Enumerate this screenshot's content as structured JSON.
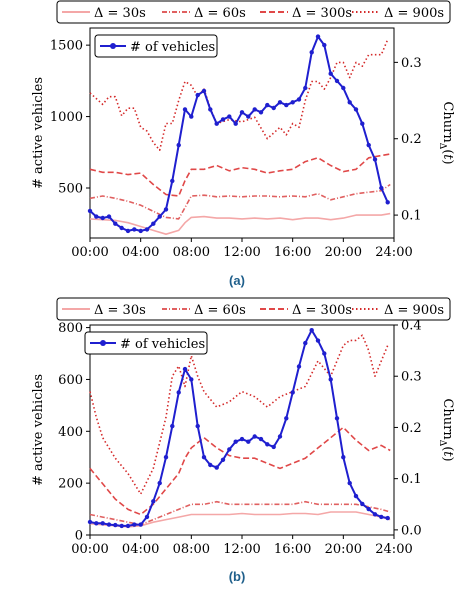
{
  "chart_data": [
    {
      "type": "line",
      "panel_label": "(a)",
      "xlabel": "",
      "ylabel_left": "# active vehicles",
      "ylabel_right": "Churn",
      "ylabel_right_sub": "Δ",
      "x_ticks": [
        "00:00",
        "04:00",
        "08:00",
        "12:00",
        "16:00",
        "20:00",
        "24:00"
      ],
      "y_left_ticks": [
        500,
        1000,
        1500
      ],
      "y_right_ticks": [
        0.1,
        0.2,
        0.3
      ],
      "xlim": [
        0,
        24
      ],
      "ylim_left": [
        150,
        1620
      ],
      "ylim_right": [
        0.07,
        0.345
      ],
      "legend_top": [
        "Δ = 30s",
        "Δ = 60s",
        "Δ = 300s",
        "Δ = 900s"
      ],
      "legend_inner": "# of vehicles",
      "series": [
        {
          "name": "# of vehicles",
          "axis": "left",
          "color": "#1f1fcf",
          "style": "solid",
          "marker": true,
          "x": [
            0,
            0.5,
            1,
            1.5,
            2,
            2.5,
            3,
            3.5,
            4,
            4.5,
            5,
            5.5,
            6,
            6.5,
            7,
            7.5,
            8,
            8.5,
            9,
            9.5,
            10,
            10.5,
            11,
            11.5,
            12,
            12.5,
            13,
            13.5,
            14,
            14.5,
            15,
            15.5,
            16,
            16.5,
            17,
            17.5,
            18,
            18.5,
            19,
            19.5,
            20,
            20.5,
            21,
            21.5,
            22,
            22.5,
            23,
            23.5
          ],
          "values": [
            340,
            300,
            290,
            300,
            250,
            220,
            200,
            210,
            200,
            210,
            250,
            300,
            350,
            550,
            800,
            1050,
            1000,
            1150,
            1180,
            1050,
            950,
            980,
            1000,
            950,
            1030,
            1000,
            1050,
            1030,
            1080,
            1060,
            1100,
            1080,
            1100,
            1120,
            1200,
            1450,
            1560,
            1500,
            1300,
            1250,
            1200,
            1100,
            1050,
            950,
            800,
            700,
            500,
            400
          ]
        },
        {
          "name": "Δ = 30s",
          "axis": "right",
          "color": "#f4a7a7",
          "style": "solid",
          "x": [
            0,
            1,
            2,
            3,
            4,
            5,
            6,
            7,
            7.5,
            8,
            9,
            10,
            11,
            12,
            13,
            14,
            15,
            16,
            17,
            18,
            19,
            20,
            21,
            22,
            23,
            23.7
          ],
          "values": [
            0.095,
            0.094,
            0.093,
            0.09,
            0.085,
            0.08,
            0.075,
            0.08,
            0.09,
            0.097,
            0.098,
            0.096,
            0.096,
            0.095,
            0.096,
            0.095,
            0.096,
            0.094,
            0.096,
            0.096,
            0.094,
            0.096,
            0.1,
            0.1,
            0.1,
            0.102
          ]
        },
        {
          "name": "Δ = 60s",
          "axis": "right",
          "color": "#e06060",
          "style": "dashdot",
          "x": [
            0,
            1,
            2,
            3,
            4,
            5,
            6,
            7,
            7.5,
            8,
            9,
            10,
            11,
            12,
            13,
            14,
            15,
            16,
            17,
            18,
            19,
            20,
            21,
            22,
            23,
            23.7
          ],
          "values": [
            0.122,
            0.125,
            0.122,
            0.118,
            0.113,
            0.105,
            0.097,
            0.095,
            0.11,
            0.125,
            0.126,
            0.124,
            0.125,
            0.124,
            0.125,
            0.125,
            0.124,
            0.125,
            0.124,
            0.128,
            0.12,
            0.124,
            0.128,
            0.13,
            0.132,
            0.14
          ]
        },
        {
          "name": "Δ = 300s",
          "axis": "right",
          "color": "#e04848",
          "style": "dash",
          "x": [
            0,
            1,
            2,
            3,
            4,
            5,
            6,
            7,
            7.5,
            8,
            9,
            10,
            11,
            12,
            13,
            14,
            15,
            16,
            17,
            18,
            19,
            20,
            21,
            22,
            23,
            23.7
          ],
          "values": [
            0.16,
            0.156,
            0.156,
            0.153,
            0.155,
            0.14,
            0.127,
            0.125,
            0.145,
            0.16,
            0.16,
            0.165,
            0.158,
            0.162,
            0.16,
            0.155,
            0.158,
            0.16,
            0.17,
            0.175,
            0.165,
            0.157,
            0.16,
            0.175,
            0.178,
            0.18
          ]
        },
        {
          "name": "Δ = 900s",
          "axis": "right",
          "color": "#d42a2a",
          "style": "dot",
          "x": [
            0,
            1,
            1.5,
            2,
            2.5,
            3,
            3.5,
            4,
            4.5,
            5,
            5.5,
            6,
            6.5,
            7,
            7.5,
            8,
            8.5,
            9,
            9.5,
            10,
            11,
            12,
            13,
            14,
            15,
            15.5,
            16,
            16.5,
            17,
            17.5,
            18,
            18.5,
            19,
            19.5,
            20,
            20.5,
            21,
            21.5,
            22,
            22.5,
            23,
            23.5
          ],
          "values": [
            0.26,
            0.245,
            0.255,
            0.255,
            0.23,
            0.24,
            0.24,
            0.215,
            0.21,
            0.195,
            0.185,
            0.22,
            0.22,
            0.25,
            0.275,
            0.27,
            0.255,
            0.265,
            0.24,
            0.22,
            0.225,
            0.222,
            0.228,
            0.2,
            0.215,
            0.205,
            0.22,
            0.215,
            0.25,
            0.275,
            0.275,
            0.265,
            0.28,
            0.3,
            0.3,
            0.28,
            0.3,
            0.295,
            0.31,
            0.31,
            0.31,
            0.33
          ]
        }
      ]
    },
    {
      "type": "line",
      "panel_label": "(b)",
      "xlabel": "",
      "ylabel_left": "# active vehicles",
      "ylabel_right": "Churn",
      "ylabel_right_sub": "Δ",
      "x_ticks": [
        "00:00",
        "04:00",
        "08:00",
        "12:00",
        "16:00",
        "20:00",
        "24:00"
      ],
      "y_left_ticks": [
        0,
        200,
        400,
        600,
        800
      ],
      "y_right_ticks": [
        0.0,
        0.1,
        0.2,
        0.3,
        0.4
      ],
      "xlim": [
        0,
        24
      ],
      "ylim_left": [
        0,
        810
      ],
      "ylim_right": [
        -0.01,
        0.4
      ],
      "legend_top": [
        "Δ = 30s",
        "Δ = 60s",
        "Δ = 300s",
        "Δ = 900s"
      ],
      "legend_inner": "# of vehicles",
      "series": [
        {
          "name": "# of vehicles",
          "axis": "left",
          "color": "#1f1fcf",
          "style": "solid",
          "marker": true,
          "x": [
            0,
            0.5,
            1,
            1.5,
            2,
            2.5,
            3,
            3.5,
            4,
            4.5,
            5,
            5.5,
            6,
            6.5,
            7,
            7.5,
            8,
            8.5,
            9,
            9.5,
            10,
            10.5,
            11,
            11.5,
            12,
            12.5,
            13,
            13.5,
            14,
            14.5,
            15,
            15.5,
            16,
            16.5,
            17,
            17.5,
            18,
            18.5,
            19,
            19.5,
            20,
            20.5,
            21,
            21.5,
            22,
            22.5,
            23,
            23.5
          ],
          "values": [
            50,
            45,
            45,
            40,
            38,
            35,
            35,
            40,
            40,
            70,
            130,
            200,
            300,
            420,
            550,
            640,
            600,
            420,
            300,
            270,
            260,
            290,
            330,
            360,
            370,
            360,
            380,
            370,
            350,
            340,
            380,
            450,
            550,
            650,
            740,
            790,
            750,
            700,
            600,
            450,
            300,
            200,
            150,
            120,
            100,
            80,
            70,
            65
          ]
        },
        {
          "name": "Δ = 30s",
          "axis": "right",
          "color": "#f4a7a7",
          "style": "solid",
          "x": [
            0,
            1,
            2,
            3,
            4,
            5,
            6,
            7,
            8,
            9,
            10,
            11,
            12,
            13,
            14,
            15,
            16,
            17,
            18,
            19,
            20,
            21,
            22,
            23,
            23.7
          ],
          "values": [
            0.012,
            0.01,
            0.008,
            0.006,
            0.008,
            0.015,
            0.02,
            0.025,
            0.03,
            0.03,
            0.03,
            0.03,
            0.032,
            0.03,
            0.03,
            0.03,
            0.032,
            0.032,
            0.03,
            0.035,
            0.035,
            0.035,
            0.03,
            0.025,
            0.02
          ]
        },
        {
          "name": "Δ = 60s",
          "axis": "right",
          "color": "#e06060",
          "style": "dashdot",
          "x": [
            0,
            1,
            2,
            3,
            4,
            5,
            6,
            7,
            8,
            9,
            10,
            11,
            12,
            13,
            14,
            15,
            16,
            17,
            18,
            19,
            20,
            21,
            22,
            23,
            23.7
          ],
          "values": [
            0.03,
            0.025,
            0.02,
            0.015,
            0.01,
            0.02,
            0.03,
            0.04,
            0.05,
            0.05,
            0.055,
            0.05,
            0.05,
            0.05,
            0.05,
            0.05,
            0.05,
            0.055,
            0.05,
            0.05,
            0.05,
            0.05,
            0.045,
            0.04,
            0.035
          ]
        },
        {
          "name": "Δ = 300s",
          "axis": "right",
          "color": "#e04848",
          "style": "dash",
          "x": [
            0,
            1,
            2,
            3,
            4,
            5,
            6,
            7,
            7.5,
            8,
            8.5,
            9,
            10,
            11,
            12,
            13,
            14,
            15,
            16,
            17,
            18,
            19,
            20,
            21,
            22,
            23,
            23.7
          ],
          "values": [
            0.12,
            0.09,
            0.06,
            0.04,
            0.03,
            0.05,
            0.08,
            0.11,
            0.14,
            0.16,
            0.17,
            0.18,
            0.16,
            0.145,
            0.14,
            0.14,
            0.13,
            0.12,
            0.13,
            0.14,
            0.16,
            0.18,
            0.2,
            0.175,
            0.155,
            0.165,
            0.155
          ]
        },
        {
          "name": "Δ = 900s",
          "axis": "right",
          "color": "#d42a2a",
          "style": "dot",
          "x": [
            0,
            0.5,
            1,
            2,
            3,
            4,
            5,
            6,
            6.5,
            7,
            7.5,
            8,
            8.5,
            9,
            10,
            11,
            12,
            13,
            14,
            15,
            16,
            17,
            18,
            19,
            20,
            20.5,
            21,
            21.5,
            22,
            22.5,
            23,
            23.5
          ],
          "values": [
            0.27,
            0.22,
            0.18,
            0.14,
            0.11,
            0.07,
            0.12,
            0.22,
            0.3,
            0.32,
            0.28,
            0.34,
            0.3,
            0.27,
            0.24,
            0.25,
            0.27,
            0.26,
            0.24,
            0.26,
            0.27,
            0.28,
            0.33,
            0.3,
            0.36,
            0.37,
            0.37,
            0.38,
            0.35,
            0.3,
            0.33,
            0.36
          ]
        }
      ]
    }
  ]
}
